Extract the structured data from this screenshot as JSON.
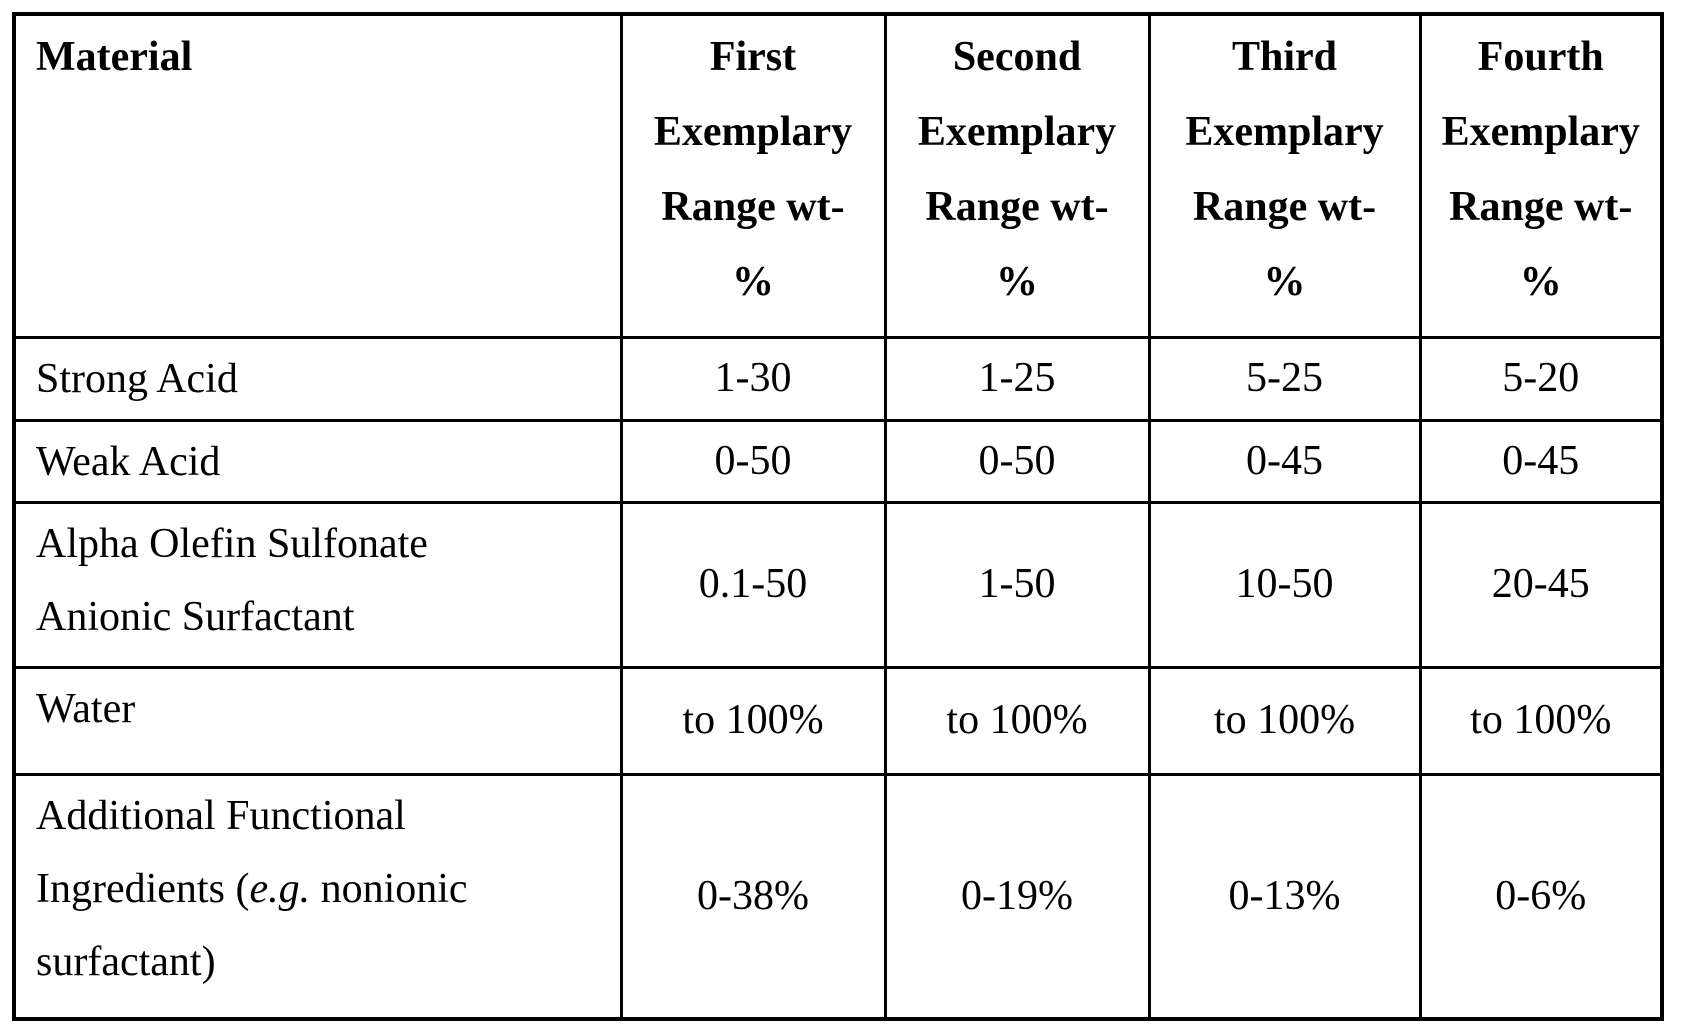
{
  "table": {
    "header": {
      "material_label": "Material",
      "range_columns": [
        {
          "lines": [
            "First",
            "Exemplary",
            "Range wt-",
            "%"
          ]
        },
        {
          "lines": [
            "Second",
            "Exemplary",
            "Range wt-",
            "%"
          ]
        },
        {
          "lines": [
            "Third",
            "Exemplary",
            "Range wt-",
            "%"
          ]
        },
        {
          "lines": [
            "Fourth",
            "Exemplary",
            "Range wt-",
            "%"
          ]
        }
      ]
    },
    "rows": [
      {
        "material_lines": [
          "Strong Acid"
        ],
        "values": [
          "1-30",
          "1-25",
          "5-25",
          "5-20"
        ]
      },
      {
        "material_lines": [
          "Weak Acid"
        ],
        "values": [
          "0-50",
          "0-50",
          "0-45",
          "0-45"
        ]
      },
      {
        "material_lines": [
          "Alpha Olefin Sulfonate",
          "Anionic Surfactant"
        ],
        "values": [
          "0.1-50",
          "1-50",
          "10-50",
          "20-45"
        ]
      },
      {
        "material_lines": [
          "Water"
        ],
        "values": [
          "to 100%",
          "to 100%",
          "to 100%",
          "to 100%"
        ]
      },
      {
        "material_lines": [
          "Additional Functional"
        ],
        "material_line_with_italic": {
          "pre": "Ingredients (",
          "italic": "e.g.",
          "post": " nonionic"
        },
        "material_last_line": "surfactant)",
        "values": [
          "0-38%",
          "0-19%",
          "0-13%",
          "0-6%"
        ]
      }
    ]
  }
}
